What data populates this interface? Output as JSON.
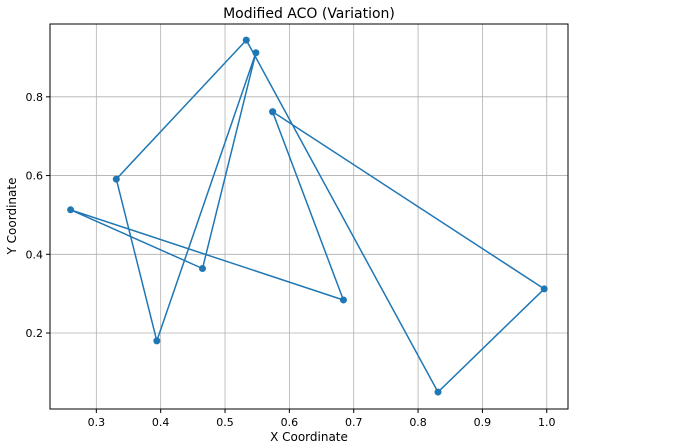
{
  "chart_data": {
    "type": "line",
    "title": "Modified ACO (Variation)",
    "xlabel": "X Coordinate",
    "ylabel": "Y Coordinate",
    "xlim": [
      0.228,
      1.033
    ],
    "ylim": [
      0.007,
      0.985
    ],
    "xticks": [
      0.3,
      0.4,
      0.5,
      0.6,
      0.7,
      0.8,
      0.9,
      1.0
    ],
    "xtick_labels": [
      "0.3",
      "0.4",
      "0.5",
      "0.6",
      "0.7",
      "0.8",
      "0.9",
      "1.0"
    ],
    "yticks": [
      0.2,
      0.4,
      0.6,
      0.8
    ],
    "ytick_labels": [
      "0.2",
      "0.4",
      "0.6",
      "0.8"
    ],
    "grid": true,
    "series": [
      {
        "color": "#1f77b4",
        "marker": "circle",
        "points": [
          {
            "x": 0.574,
            "y": 0.762
          },
          {
            "x": 0.684,
            "y": 0.284
          },
          {
            "x": 0.26,
            "y": 0.513
          },
          {
            "x": 0.465,
            "y": 0.364
          },
          {
            "x": 0.548,
            "y": 0.912
          },
          {
            "x": 0.394,
            "y": 0.18
          },
          {
            "x": 0.331,
            "y": 0.591
          },
          {
            "x": 0.533,
            "y": 0.944
          },
          {
            "x": 0.831,
            "y": 0.05
          },
          {
            "x": 0.996,
            "y": 0.312
          },
          {
            "x": 0.574,
            "y": 0.762
          }
        ]
      }
    ]
  }
}
